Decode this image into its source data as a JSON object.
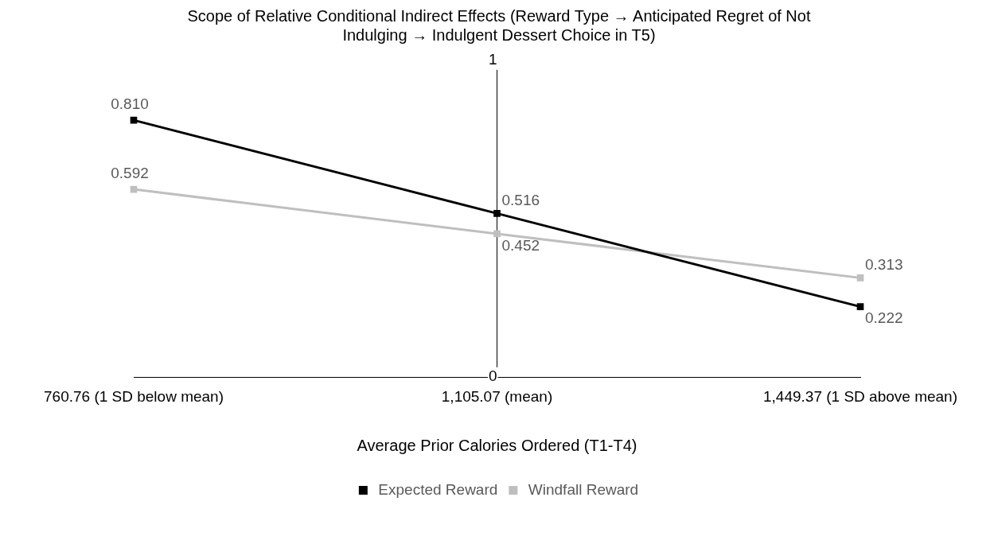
{
  "chart_data": {
    "type": "line",
    "title": "Scope of Relative Conditional Indirect Effects (Reward Type → Anticipated Regret of Not Indulging → Indulgent Dessert Choice in T5)",
    "xlabel": "Average Prior Calories Ordered (T1-T4)",
    "categories": [
      "760.76 (1 SD below mean)",
      "1,105.07 (mean)",
      "1,449.37 (1 SD above mean)"
    ],
    "series": [
      {
        "name": "Expected Reward",
        "color": "#000000",
        "values": [
          0.81,
          0.516,
          0.222
        ],
        "value_labels": [
          "0.810",
          "0.516",
          "0.222"
        ]
      },
      {
        "name": "Windfall Reward",
        "color": "#bfbfbf",
        "values": [
          0.592,
          0.452,
          0.313
        ],
        "value_labels": [
          "0.592",
          "0.452",
          "0.313"
        ]
      }
    ],
    "ylim": [
      0,
      1
    ],
    "yticks": [
      0,
      1
    ],
    "grid": false,
    "legend": "bottom",
    "marker": "square",
    "line_style": "solid"
  }
}
